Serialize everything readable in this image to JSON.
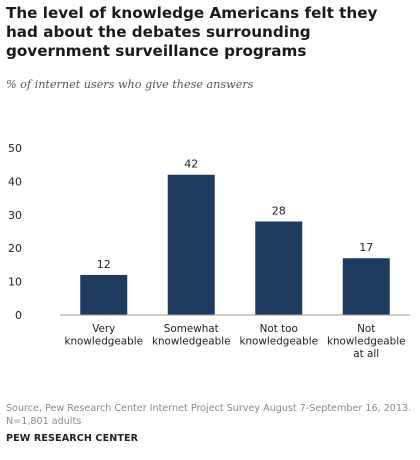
{
  "title": "The level of knowledge Americans felt they had about the debates surrounding government surveillance programs",
  "subtitle": "% of internet users who give these answers",
  "source_note": "Source, Pew Research Center Internet Project Survey August 7-September 16, 2013. N=1,801 adults",
  "footer": "PEW RESEARCH CENTER",
  "colors": {
    "bar": "#1f3a5f",
    "axis": "#999999",
    "text": "#222222"
  },
  "chart_data": {
    "type": "bar",
    "categories": [
      [
        "Very",
        "knowledgeable"
      ],
      [
        "Somewhat",
        "knowledgeable"
      ],
      [
        "Not too",
        "knowledgeable"
      ],
      [
        "Not",
        "knowledgeable",
        "at all"
      ]
    ],
    "values": [
      12,
      42,
      28,
      17
    ],
    "yticks": [
      0,
      10,
      20,
      30,
      40,
      50
    ],
    "ylim": [
      0,
      50
    ],
    "grid": false,
    "data_labels": true
  }
}
